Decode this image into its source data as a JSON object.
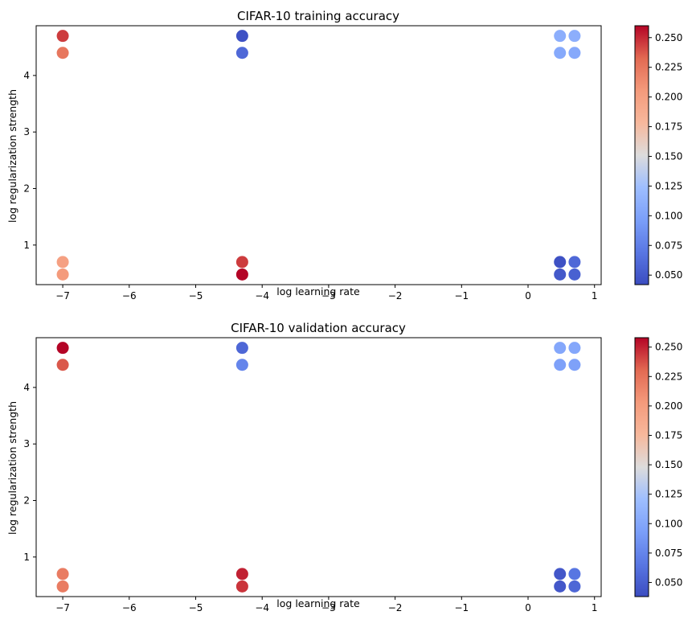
{
  "chart_data": [
    {
      "type": "scatter",
      "title": "CIFAR-10 training accuracy",
      "xlabel": "log learning rate",
      "ylabel": "log regularization strength",
      "xlim": [
        -7.4,
        1.1
      ],
      "ylim": [
        0.3,
        4.88
      ],
      "xticks": [
        -7,
        -6,
        -5,
        -4,
        -3,
        -2,
        -1,
        0,
        1
      ],
      "yticks": [
        1,
        2,
        3,
        4
      ],
      "colormap": "coolwarm",
      "colorbar": {
        "range": [
          0.042,
          0.26
        ],
        "ticks": [
          "0.050",
          "0.075",
          "0.100",
          "0.125",
          "0.150",
          "0.175",
          "0.200",
          "0.225",
          "0.250"
        ]
      },
      "points": [
        {
          "x": -7.0,
          "y": 4.7,
          "value": 0.245
        },
        {
          "x": -7.0,
          "y": 4.4,
          "value": 0.225
        },
        {
          "x": -7.0,
          "y": 0.7,
          "value": 0.2
        },
        {
          "x": -7.0,
          "y": 0.48,
          "value": 0.205
        },
        {
          "x": -4.3,
          "y": 4.7,
          "value": 0.045
        },
        {
          "x": -4.3,
          "y": 4.4,
          "value": 0.06
        },
        {
          "x": -4.3,
          "y": 0.7,
          "value": 0.245
        },
        {
          "x": -4.3,
          "y": 0.48,
          "value": 0.26
        },
        {
          "x": 0.48,
          "y": 4.7,
          "value": 0.11
        },
        {
          "x": 0.7,
          "y": 4.7,
          "value": 0.11
        },
        {
          "x": 0.48,
          "y": 4.4,
          "value": 0.105
        },
        {
          "x": 0.7,
          "y": 4.4,
          "value": 0.105
        },
        {
          "x": 0.48,
          "y": 0.7,
          "value": 0.045
        },
        {
          "x": 0.7,
          "y": 0.7,
          "value": 0.06
        },
        {
          "x": 0.48,
          "y": 0.48,
          "value": 0.05
        },
        {
          "x": 0.7,
          "y": 0.48,
          "value": 0.055
        }
      ]
    },
    {
      "type": "scatter",
      "title": "CIFAR-10 validation accuracy",
      "xlabel": "log learning rate",
      "ylabel": "log regularization strength",
      "xlim": [
        -7.4,
        1.1
      ],
      "ylim": [
        0.3,
        4.88
      ],
      "xticks": [
        -7,
        -6,
        -5,
        -4,
        -3,
        -2,
        -1,
        0,
        1
      ],
      "yticks": [
        1,
        2,
        3,
        4
      ],
      "colormap": "coolwarm",
      "colorbar": {
        "range": [
          0.038,
          0.258
        ],
        "ticks": [
          "0.050",
          "0.075",
          "0.100",
          "0.125",
          "0.150",
          "0.175",
          "0.200",
          "0.225",
          "0.250"
        ]
      },
      "points": [
        {
          "x": -7.0,
          "y": 4.7,
          "value": 0.258
        },
        {
          "x": -7.0,
          "y": 4.4,
          "value": 0.235
        },
        {
          "x": -7.0,
          "y": 0.7,
          "value": 0.22
        },
        {
          "x": -7.0,
          "y": 0.48,
          "value": 0.22
        },
        {
          "x": -4.3,
          "y": 4.7,
          "value": 0.055
        },
        {
          "x": -4.3,
          "y": 4.4,
          "value": 0.075
        },
        {
          "x": -4.3,
          "y": 0.7,
          "value": 0.25
        },
        {
          "x": -4.3,
          "y": 0.48,
          "value": 0.245
        },
        {
          "x": 0.48,
          "y": 4.7,
          "value": 0.1
        },
        {
          "x": 0.7,
          "y": 4.7,
          "value": 0.1
        },
        {
          "x": 0.48,
          "y": 4.4,
          "value": 0.095
        },
        {
          "x": 0.7,
          "y": 4.4,
          "value": 0.095
        },
        {
          "x": 0.48,
          "y": 0.7,
          "value": 0.045
        },
        {
          "x": 0.7,
          "y": 0.7,
          "value": 0.065
        },
        {
          "x": 0.48,
          "y": 0.48,
          "value": 0.045
        },
        {
          "x": 0.7,
          "y": 0.48,
          "value": 0.055
        }
      ]
    }
  ]
}
